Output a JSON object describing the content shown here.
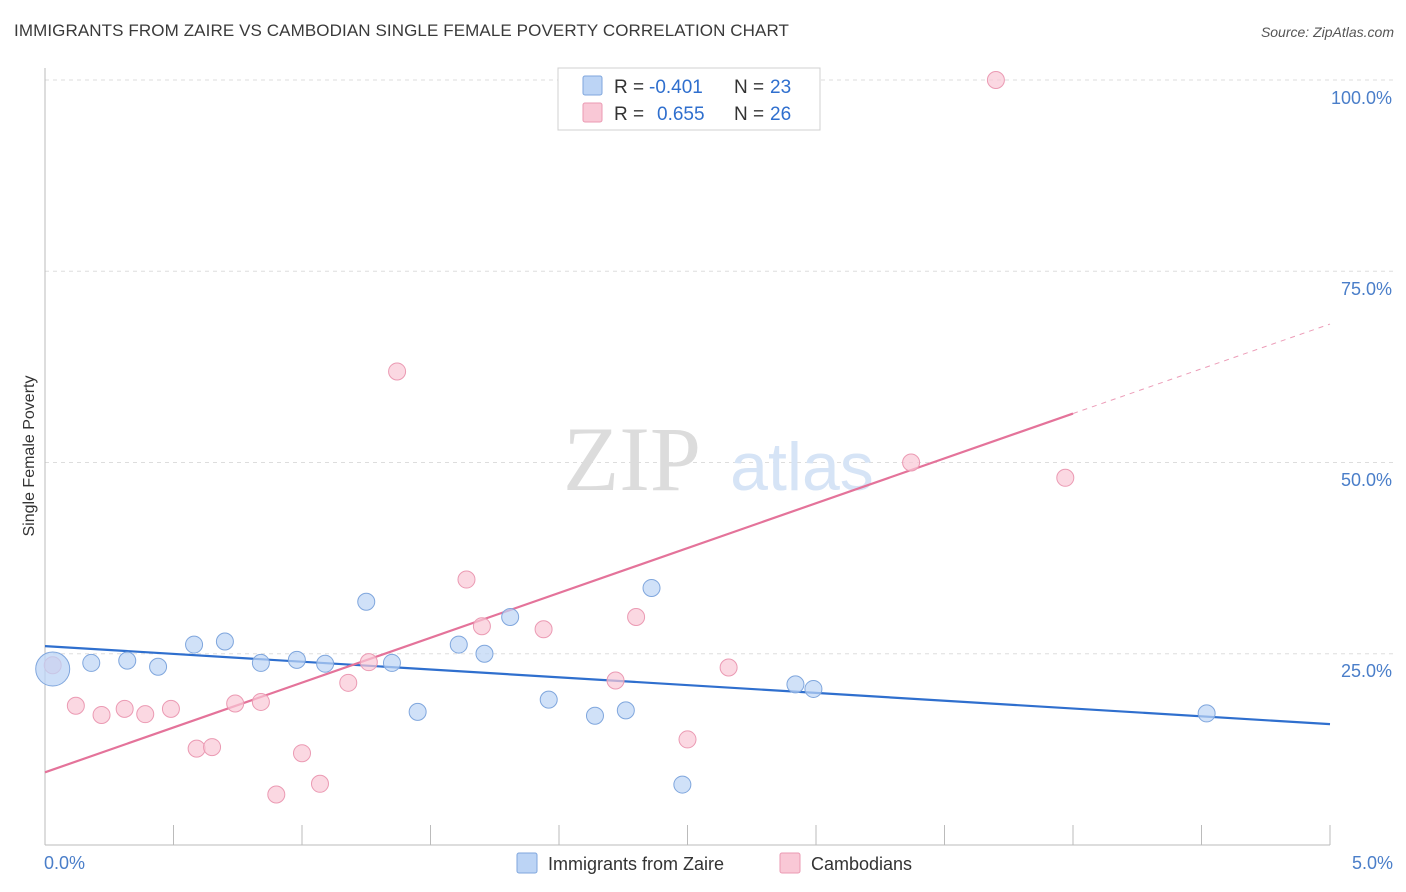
{
  "header": {
    "title": "IMMIGRANTS FROM ZAIRE VS CAMBODIAN SINGLE FEMALE POVERTY CORRELATION CHART",
    "source": "Source: ZipAtlas.com"
  },
  "watermark": {
    "zip": "ZIP",
    "atlas": "atlas"
  },
  "legend": {
    "rows": [
      {
        "r_label": "R =",
        "r_value": "-0.401",
        "n_label": "N =",
        "n_value": "23"
      },
      {
        "r_label": "R =",
        "r_value": "0.655",
        "n_label": "N =",
        "n_value": "26"
      }
    ]
  },
  "colors": {
    "blue_fill": "#bcd4f5",
    "blue_stroke": "#7fa6dd",
    "blue_line": "#2f6fce",
    "pink_fill": "#f9c8d6",
    "pink_stroke": "#eb9ab3",
    "pink_line": "#e4739a",
    "value_blue": "#2f6fce",
    "grid": "#dddddd"
  },
  "chart_data": {
    "type": "scatter",
    "title": "IMMIGRANTS FROM ZAIRE VS CAMBODIAN SINGLE FEMALE POVERTY CORRELATION CHART",
    "xlabel": "",
    "ylabel": "Single Female Poverty",
    "xlim": [
      0,
      5
    ],
    "ylim": [
      0,
      100
    ],
    "x_tick_labels": [
      "0.0%",
      "5.0%"
    ],
    "y_ticks": [
      25,
      50,
      75,
      100
    ],
    "y_tick_labels": [
      "25.0%",
      "50.0%",
      "75.0%",
      "100.0%"
    ],
    "grid": true,
    "legend_position": "bottom-center",
    "series": [
      {
        "name": "Immigrants from Zaire",
        "color": "#7fa6dd",
        "points": [
          {
            "x": 0.03,
            "y": 23.0,
            "big": true
          },
          {
            "x": 0.18,
            "y": 23.8
          },
          {
            "x": 0.32,
            "y": 24.1
          },
          {
            "x": 0.44,
            "y": 23.3
          },
          {
            "x": 0.58,
            "y": 26.2
          },
          {
            "x": 0.7,
            "y": 26.6
          },
          {
            "x": 0.84,
            "y": 23.8
          },
          {
            "x": 0.98,
            "y": 24.2
          },
          {
            "x": 1.09,
            "y": 23.7
          },
          {
            "x": 1.25,
            "y": 31.8
          },
          {
            "x": 1.35,
            "y": 23.8
          },
          {
            "x": 1.45,
            "y": 17.4
          },
          {
            "x": 1.61,
            "y": 26.2
          },
          {
            "x": 1.71,
            "y": 25.0
          },
          {
            "x": 1.81,
            "y": 29.8
          },
          {
            "x": 1.96,
            "y": 19.0
          },
          {
            "x": 2.14,
            "y": 16.9
          },
          {
            "x": 2.26,
            "y": 17.6
          },
          {
            "x": 2.36,
            "y": 33.6
          },
          {
            "x": 2.48,
            "y": 7.9
          },
          {
            "x": 2.92,
            "y": 21.0
          },
          {
            "x": 2.99,
            "y": 20.4
          },
          {
            "x": 4.52,
            "y": 17.2
          }
        ],
        "trend": {
          "x0": 0.0,
          "y0": 26.0,
          "x1": 5.0,
          "y1": 15.8
        }
      },
      {
        "name": "Cambodians",
        "color": "#eb9ab3",
        "points": [
          {
            "x": 0.03,
            "y": 23.5
          },
          {
            "x": 0.12,
            "y": 18.2
          },
          {
            "x": 0.22,
            "y": 17.0
          },
          {
            "x": 0.31,
            "y": 17.8
          },
          {
            "x": 0.39,
            "y": 17.1
          },
          {
            "x": 0.49,
            "y": 17.8
          },
          {
            "x": 0.59,
            "y": 12.6
          },
          {
            "x": 0.65,
            "y": 12.8
          },
          {
            "x": 0.74,
            "y": 18.5
          },
          {
            "x": 0.84,
            "y": 18.7
          },
          {
            "x": 0.9,
            "y": 6.6
          },
          {
            "x": 1.0,
            "y": 12.0
          },
          {
            "x": 1.07,
            "y": 8.0
          },
          {
            "x": 1.18,
            "y": 21.2
          },
          {
            "x": 1.26,
            "y": 23.9
          },
          {
            "x": 1.37,
            "y": 61.9
          },
          {
            "x": 1.64,
            "y": 34.7
          },
          {
            "x": 1.7,
            "y": 28.6
          },
          {
            "x": 1.94,
            "y": 28.2
          },
          {
            "x": 2.22,
            "y": 21.5
          },
          {
            "x": 2.3,
            "y": 29.8
          },
          {
            "x": 2.5,
            "y": 13.8
          },
          {
            "x": 2.66,
            "y": 23.2
          },
          {
            "x": 3.37,
            "y": 50.0
          },
          {
            "x": 3.7,
            "y": 100.0
          },
          {
            "x": 3.97,
            "y": 48.0
          }
        ],
        "trend": {
          "x0": 0.0,
          "y0": 9.5,
          "x1": 4.0,
          "y1": 56.4
        },
        "trend_dashed": {
          "x0": 4.0,
          "y0": 56.4,
          "x1": 5.0,
          "y1": 68.1
        }
      }
    ]
  }
}
